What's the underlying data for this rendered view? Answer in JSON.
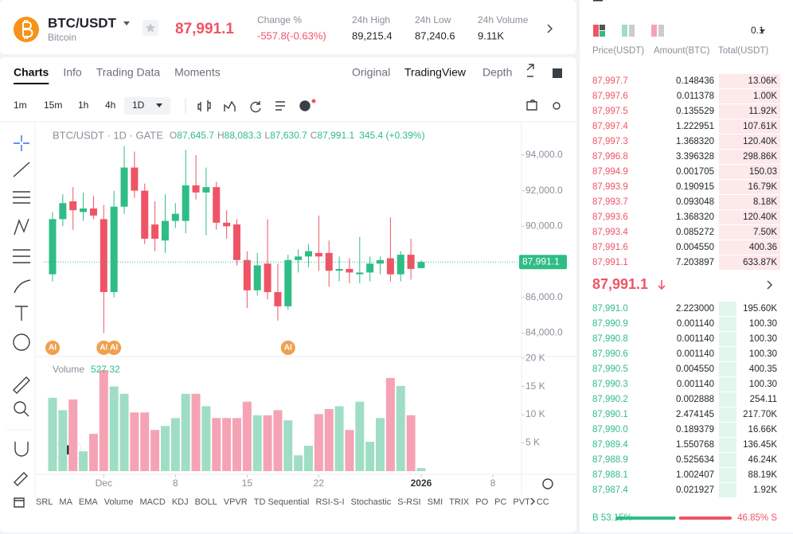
{
  "header": {
    "symbol": "BTC/USDT",
    "name": "Bitcoin",
    "price": "87,991.1",
    "stats": [
      {
        "label": "Change %",
        "value": "-557.8(-0.63%)"
      },
      {
        "label": "24h High",
        "value": "89,215.4"
      },
      {
        "label": "24h Low",
        "value": "87,240.6"
      },
      {
        "label": "24h Volume",
        "value": "9.11K"
      }
    ]
  },
  "tabs": [
    "Charts",
    "Info",
    "Trading Data",
    "Moments"
  ],
  "views": [
    "Original",
    "TradingView",
    "Depth"
  ],
  "intervals": [
    "1m",
    "15m",
    "1h",
    "4h",
    "1D"
  ],
  "chart_data": {
    "type": "candlestick",
    "title": "BTC/USDT · 1D · GATE",
    "legend": [
      {
        "label": "O",
        "value": "87,645.7"
      },
      {
        "label": "H",
        "value": "88,083.3"
      },
      {
        "label": "L",
        "value": "87,630.7"
      },
      {
        "label": "C",
        "value": "87,991.1"
      }
    ],
    "legend_change": "345.4 (+0.39%)",
    "open": [
      87300,
      90400,
      91400,
      90800,
      91000,
      90400,
      86300,
      91100,
      93300,
      92000,
      90100,
      89200,
      90300,
      90300,
      92300,
      91900,
      92200,
      90200,
      90100,
      88100,
      86400,
      87900,
      86300,
      85500,
      88100,
      88300,
      88500,
      88500,
      87500,
      87600,
      87300,
      87400,
      87900,
      88200,
      87300,
      88400,
      87645.7
    ],
    "high": [
      90800,
      91800,
      92200,
      91900,
      91700,
      91200,
      92000,
      94500,
      94200,
      92400,
      91400,
      91800,
      91300,
      94300,
      94000,
      93300,
      92500,
      90900,
      90400,
      88600,
      88500,
      90400,
      87900,
      88400,
      88700,
      89000,
      90600,
      89200,
      88300,
      88200,
      89400,
      88300,
      88300,
      90500,
      88600,
      89300,
      88083.3
    ],
    "low": [
      86900,
      90000,
      89800,
      90300,
      90400,
      84000,
      86000,
      90700,
      91600,
      89000,
      88600,
      88500,
      89900,
      89600,
      91500,
      89500,
      89800,
      89300,
      87800,
      85400,
      86100,
      85900,
      84700,
      85300,
      87400,
      87700,
      87500,
      86600,
      86900,
      86800,
      86800,
      86900,
      87300,
      86900,
      86900,
      87000,
      87630.7
    ],
    "close": [
      90400,
      91300,
      90900,
      91000,
      90600,
      86300,
      91100,
      93300,
      92000,
      89300,
      89300,
      90300,
      90700,
      92300,
      91900,
      92200,
      90200,
      90000,
      88100,
      86400,
      87800,
      86300,
      85500,
      88100,
      88300,
      88600,
      88300,
      87500,
      87600,
      87400,
      87400,
      87900,
      88100,
      87300,
      88400,
      87600,
      87991.1
    ],
    "up_color": "#2ebd85",
    "down_color": "#ef5466",
    "ylim": [
      82676,
      95785
    ],
    "yticks": [
      {
        "value": 84000,
        "label": "84,000.0"
      },
      {
        "value": 86000,
        "label": "86,000.0"
      },
      {
        "value": 90000,
        "label": "90,000.0"
      },
      {
        "value": 92000,
        "label": "92,000.0"
      },
      {
        "value": 94000,
        "label": "94,000.0"
      }
    ],
    "last_price": {
      "value": 87991.1,
      "label": "87,991.1"
    },
    "xlim": [
      -0.855,
      45.8
    ],
    "xticks": [
      {
        "value": 5,
        "label": "Dec"
      },
      {
        "value": 12,
        "label": "8"
      },
      {
        "value": 19,
        "label": "15"
      },
      {
        "value": 26,
        "label": "22"
      },
      {
        "value": 36,
        "label": "2026"
      },
      {
        "value": 43,
        "label": "8"
      }
    ],
    "markers": [
      {
        "index": 0,
        "label": "AI"
      },
      {
        "index": 5,
        "label": "AI"
      },
      {
        "index": 6,
        "label": "AI"
      },
      {
        "index": 23,
        "label": "AI"
      }
    ],
    "volume": {
      "label": "Volume",
      "value_label": "527.32",
      "values": [
        13000,
        10800,
        12700,
        3500,
        6600,
        17900,
        15000,
        13700,
        10400,
        10400,
        7300,
        8000,
        9400,
        13700,
        13700,
        11500,
        9400,
        9400,
        9400,
        12300,
        9900,
        9900,
        10800,
        9000,
        2800,
        4500,
        10100,
        11000,
        11500,
        7300,
        12300,
        5200,
        9400,
        16500,
        15100,
        9900,
        527.32
      ],
      "ylim": [
        0,
        20300
      ],
      "yticks": [
        {
          "value": 5000,
          "label": "5 K"
        },
        {
          "value": 10000,
          "label": "10 K"
        },
        {
          "value": 15000,
          "label": "15 K"
        },
        {
          "value": 20000,
          "label": "20 K"
        }
      ]
    }
  },
  "indicators": [
    "SRL",
    "MA",
    "EMA",
    "Volume",
    "MACD",
    "KDJ",
    "BOLL",
    "VPVR",
    "TD Sequential",
    "RSI-S-I",
    "Stochastic",
    "S-RSI",
    "SMI",
    "TRIX",
    "PO",
    "PC",
    "PVT",
    "CC"
  ],
  "order_book": {
    "step": "0.1",
    "columns": [
      "Price(USDT)",
      "Amount(BTC)",
      "Total(USDT)"
    ],
    "asks": [
      [
        "87,997.7",
        "0.148436",
        "13.06K"
      ],
      [
        "87,997.6",
        "0.011378",
        "1.00K"
      ],
      [
        "87,997.5",
        "0.135529",
        "11.92K"
      ],
      [
        "87,997.4",
        "1.222951",
        "107.61K"
      ],
      [
        "87,997.3",
        "1.368320",
        "120.40K"
      ],
      [
        "87,996.8",
        "3.396328",
        "298.86K"
      ],
      [
        "87,994.9",
        "0.001705",
        "150.03"
      ],
      [
        "87,993.9",
        "0.190915",
        "16.79K"
      ],
      [
        "87,993.7",
        "0.093048",
        "8.18K"
      ],
      [
        "87,993.6",
        "1.368320",
        "120.40K"
      ],
      [
        "87,993.4",
        "0.085272",
        "7.50K"
      ],
      [
        "87,991.6",
        "0.004550",
        "400.36"
      ],
      [
        "87,991.1",
        "7.203897",
        "633.87K"
      ]
    ],
    "mid": "87,991.1",
    "bids": [
      [
        "87,991.0",
        "2.223000",
        "195.60K"
      ],
      [
        "87,990.9",
        "0.001140",
        "100.30"
      ],
      [
        "87,990.8",
        "0.001140",
        "100.30"
      ],
      [
        "87,990.6",
        "0.001140",
        "100.30"
      ],
      [
        "87,990.5",
        "0.004550",
        "400.35"
      ],
      [
        "87,990.3",
        "0.001140",
        "100.30"
      ],
      [
        "87,990.2",
        "0.002888",
        "254.11"
      ],
      [
        "87,990.1",
        "2.474145",
        "217.70K"
      ],
      [
        "87,990.0",
        "0.189379",
        "16.66K"
      ],
      [
        "87,989.4",
        "1.550768",
        "136.45K"
      ],
      [
        "87,988.9",
        "0.525634",
        "46.24K"
      ],
      [
        "87,988.1",
        "1.002407",
        "88.19K"
      ],
      [
        "87,987.4",
        "0.021927",
        "1.92K"
      ]
    ],
    "buy_ratio": 53.15,
    "buy_label": "B 53.15%",
    "sell_ratio": 46.85,
    "sell_label": "46.85% S"
  }
}
